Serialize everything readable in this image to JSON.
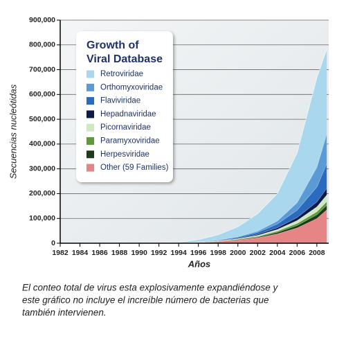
{
  "chart_data": {
    "type": "stacked_area",
    "title": [
      "Growth of",
      "Viral Database"
    ],
    "y_label": "Secuencias nucleótidas",
    "x_label": "Años",
    "caption": [
      "El conteo total de virus esta explosivamente expandiéndose y",
      "este gráfico no incluye el increíble número de bacterias que",
      "también intervienen."
    ],
    "x": [
      1982,
      1990,
      1994,
      1996,
      1998,
      2000,
      2002,
      2004,
      2006,
      2008,
      2009
    ],
    "xlim": [
      1982,
      2009.2
    ],
    "xticks": [
      1982,
      1984,
      1986,
      1988,
      1990,
      1992,
      1994,
      1996,
      1998,
      2000,
      2002,
      2004,
      2006,
      2008
    ],
    "ylim": [
      0,
      900000
    ],
    "yticks": [
      0,
      {
        "value": 100000,
        "label": "100,000"
      },
      {
        "value": 200000,
        "label": "200,000"
      },
      {
        "value": 300000,
        "label": "300,000"
      },
      {
        "value": 400000,
        "label": "400,000"
      },
      {
        "value": 500000,
        "label": "500,000"
      },
      {
        "value": 600000,
        "label": "600,000"
      },
      {
        "value": 700000,
        "label": "700,000"
      },
      {
        "value": 800000,
        "label": "800,000"
      },
      {
        "value": 900000,
        "label": "900,000"
      }
    ],
    "grid": true,
    "series": [
      {
        "name": "Retroviridae",
        "color": "#a9d8ee",
        "values": [
          0,
          0,
          2000,
          8000,
          20000,
          40000,
          70000,
          110000,
          200000,
          360000,
          340000
        ]
      },
      {
        "name": "Orthomyxoviridae",
        "color": "#5b9bd5",
        "values": [
          0,
          0,
          0,
          500,
          1000,
          2000,
          5000,
          12000,
          30000,
          80000,
          120000
        ]
      },
      {
        "name": "Flaviviridae",
        "color": "#2a6bbf",
        "values": [
          0,
          0,
          0,
          1000,
          2000,
          4000,
          8000,
          15000,
          30000,
          60000,
          100000
        ]
      },
      {
        "name": "Hepadnaviridae",
        "color": "#0e1b4a",
        "values": [
          0,
          0,
          0,
          500,
          1000,
          2000,
          4000,
          7000,
          12000,
          20000,
          27000
        ]
      },
      {
        "name": "Picornaviridae",
        "color": "#cfe9c0",
        "values": [
          0,
          0,
          0,
          500,
          1000,
          2000,
          4000,
          7000,
          12000,
          20000,
          27000
        ]
      },
      {
        "name": "Paramyxoviridae",
        "color": "#5c9a3c",
        "values": [
          0,
          0,
          0,
          300,
          800,
          1500,
          3000,
          5000,
          8000,
          12000,
          15000
        ]
      },
      {
        "name": "Herpesviridae",
        "color": "#1f3a1a",
        "values": [
          0,
          0,
          0,
          500,
          1000,
          2000,
          3000,
          6000,
          10000,
          15000,
          18000
        ]
      },
      {
        "name": "Other (59 Families)",
        "color": "#e58585",
        "values": [
          0,
          0,
          1000,
          3000,
          7000,
          13000,
          22000,
          38000,
          62000,
          100000,
          135000
        ]
      }
    ]
  }
}
